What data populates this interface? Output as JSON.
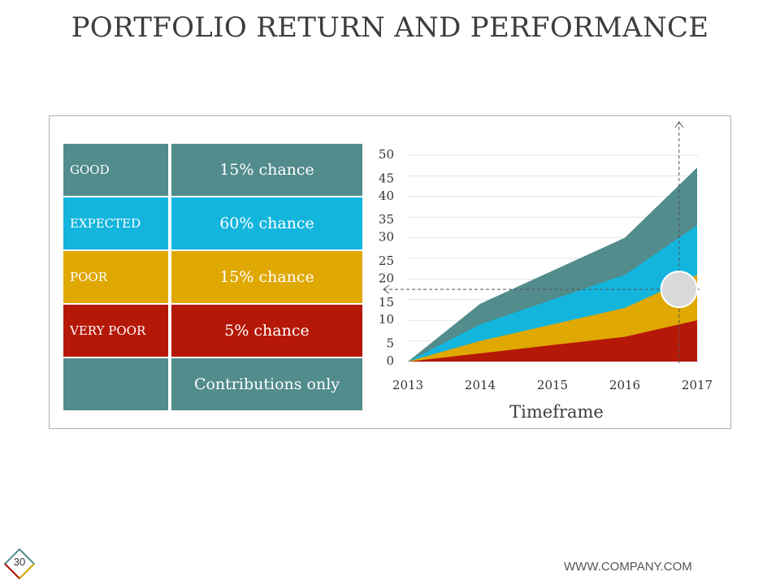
{
  "slide": {
    "title": "PORTFOLIO RETURN AND PERFORMANCE",
    "page_number": "30",
    "footer_url": "WWW.COMPANY.COM"
  },
  "table": {
    "rows": [
      {
        "label": "GOOD",
        "value": "15% chance",
        "color": "#528c8c"
      },
      {
        "label": "EXPECTED",
        "value": "60% chance",
        "color": "#13b5dd"
      },
      {
        "label": "POOR",
        "value": "15% chance",
        "color": "#dfa803"
      },
      {
        "label": "VERY POOR",
        "value": "5% chance",
        "color": "#b51807"
      },
      {
        "label": "",
        "value": "Contributions only",
        "color": "#528c8c"
      }
    ]
  },
  "chart_data": {
    "type": "area",
    "title": "",
    "xlabel": "Timeframe",
    "ylabel": "",
    "x": [
      "2013",
      "2014",
      "2015",
      "2016",
      "2017"
    ],
    "yticks": [
      "0",
      "5",
      "10",
      "15",
      "20",
      "25",
      "30",
      "35",
      "40",
      "45",
      "50"
    ],
    "ylim": [
      0,
      50
    ],
    "series": [
      {
        "name": "GOOD",
        "color": "#528c8c",
        "values": [
          0,
          14,
          22,
          30,
          47
        ]
      },
      {
        "name": "EXPECTED",
        "color": "#13b5dd",
        "values": [
          0,
          9,
          15,
          21,
          33
        ]
      },
      {
        "name": "POOR",
        "color": "#dfa803",
        "values": [
          0,
          5,
          9,
          13,
          21
        ]
      },
      {
        "name": "VERY POOR",
        "color": "#b51807",
        "values": [
          0,
          2,
          4,
          6,
          10
        ]
      }
    ],
    "marker": {
      "x": 2016.75,
      "y": 17.5,
      "color": "#d9d9d9"
    },
    "guide_lines": {
      "x": 2016.75,
      "y": 17.5
    }
  }
}
